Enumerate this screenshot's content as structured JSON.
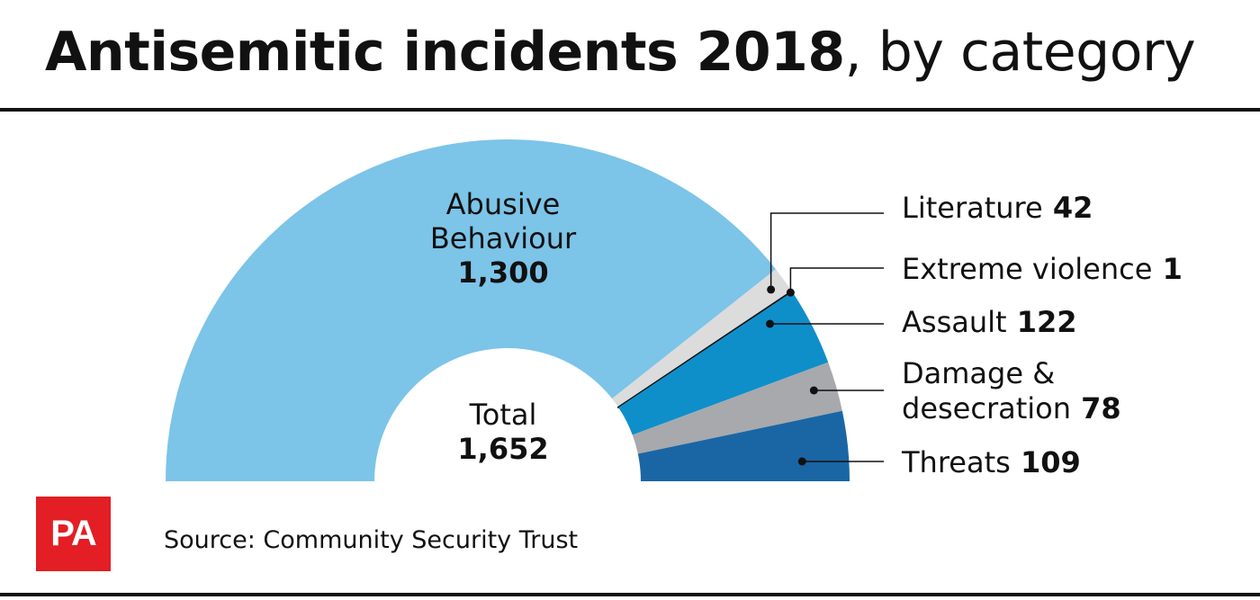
{
  "title": {
    "bold": "Antisemitic incidents 2018",
    "rest": ", by category"
  },
  "source": "Source: Community Security Trust",
  "logo": "PA",
  "colors": {
    "abusive": "#7cc4e8",
    "literature": "#dcdcdc",
    "extreme": "#111111",
    "assault": "#0e8fca",
    "damage": "#a7a9ac",
    "threats": "#1a66a4"
  },
  "chart_data": {
    "type": "pie",
    "subtype": "half-donut",
    "center_label": "Total",
    "center_value": "1,652",
    "total": 1652,
    "slices": [
      {
        "key": "abusive",
        "label_lines": [
          "Abusive",
          "Behaviour"
        ],
        "value": 1300,
        "value_text": "1,300"
      },
      {
        "key": "literature",
        "label_lines": [
          "Literature"
        ],
        "value": 42,
        "value_text": "42"
      },
      {
        "key": "extreme",
        "label_lines": [
          "Extreme violence"
        ],
        "value": 1,
        "value_text": "1"
      },
      {
        "key": "assault",
        "label_lines": [
          "Assault"
        ],
        "value": 122,
        "value_text": "122"
      },
      {
        "key": "damage",
        "label_lines": [
          "Damage &",
          "desecration"
        ],
        "value": 78,
        "value_text": "78"
      },
      {
        "key": "threats",
        "label_lines": [
          "Threats"
        ],
        "value": 109,
        "value_text": "109"
      }
    ]
  }
}
